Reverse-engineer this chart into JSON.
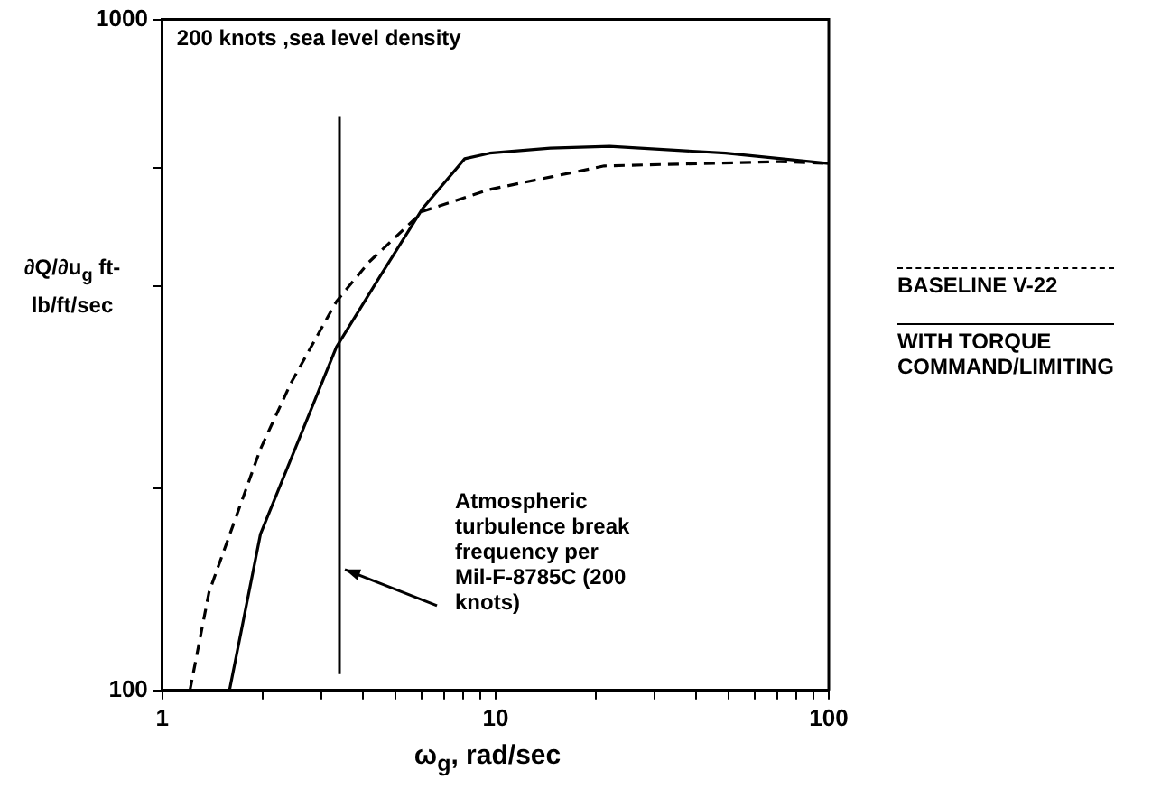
{
  "chart_data": {
    "type": "line",
    "xlabel": "ω$_{g}$,  rad/sec",
    "ylabel": "∂Q/∂u$_{g}$ ft-lb/ft/sec",
    "log": "xy",
    "xlim": [
      1,
      100
    ],
    "ylim": [
      100,
      1000
    ],
    "xticks": [
      1,
      {
        "value": 2,
        "label": null
      },
      {
        "value": 3,
        "label": null
      },
      {
        "value": 4,
        "label": null
      },
      {
        "value": 5,
        "label": null
      },
      {
        "value": 6,
        "label": null
      },
      {
        "value": 7,
        "label": null
      },
      {
        "value": 8,
        "label": null
      },
      {
        "value": 9,
        "label": null
      },
      10,
      {
        "value": 20,
        "label": null
      },
      {
        "value": 30,
        "label": null
      },
      {
        "value": 40,
        "label": null
      },
      {
        "value": 50,
        "label": null
      },
      {
        "value": 60,
        "label": null
      },
      {
        "value": 70,
        "label": null
      },
      {
        "value": 80,
        "label": null
      },
      {
        "value": 90,
        "label": null
      },
      100
    ],
    "yticks": [
      100,
      {
        "value": 200,
        "label": null
      },
      {
        "value": 400,
        "label": null
      },
      {
        "value": 600,
        "label": null
      },
      1000
    ],
    "grid": false,
    "legend": "right",
    "marker": "none",
    "annotations": [
      "200 knots ,sea level density"
    ],
    "ref_lines": [
      {
        "axis": "x",
        "value": 3.4,
        "label": "Atmospheric turbulence break frequency per Mil-F-8785C (200 knots)",
        "color": "#000000"
      }
    ],
    "series": [
      {
        "name": "BASELINE V-22",
        "color": "#000000",
        "line_style": "dashed",
        "x": [
          1.21,
          1.38,
          1.97,
          2.43,
          3.33,
          4.17,
          6.06,
          9.6,
          21.2,
          71.5,
          100
        ],
        "values": [
          100,
          140,
          229,
          287,
          380,
          435,
          518,
          558,
          605,
          614,
          610
        ]
      },
      {
        "name": "WITH TORQUE COMMAND/LIMITING",
        "color": "#000000",
        "line_style": "solid",
        "x": [
          1.59,
          1.97,
          3.33,
          4.54,
          6.06,
          8.08,
          9.6,
          14.6,
          22,
          49,
          100
        ],
        "values": [
          100,
          171,
          325,
          417,
          524,
          620,
          632,
          643,
          647,
          632,
          610
        ]
      }
    ]
  }
}
